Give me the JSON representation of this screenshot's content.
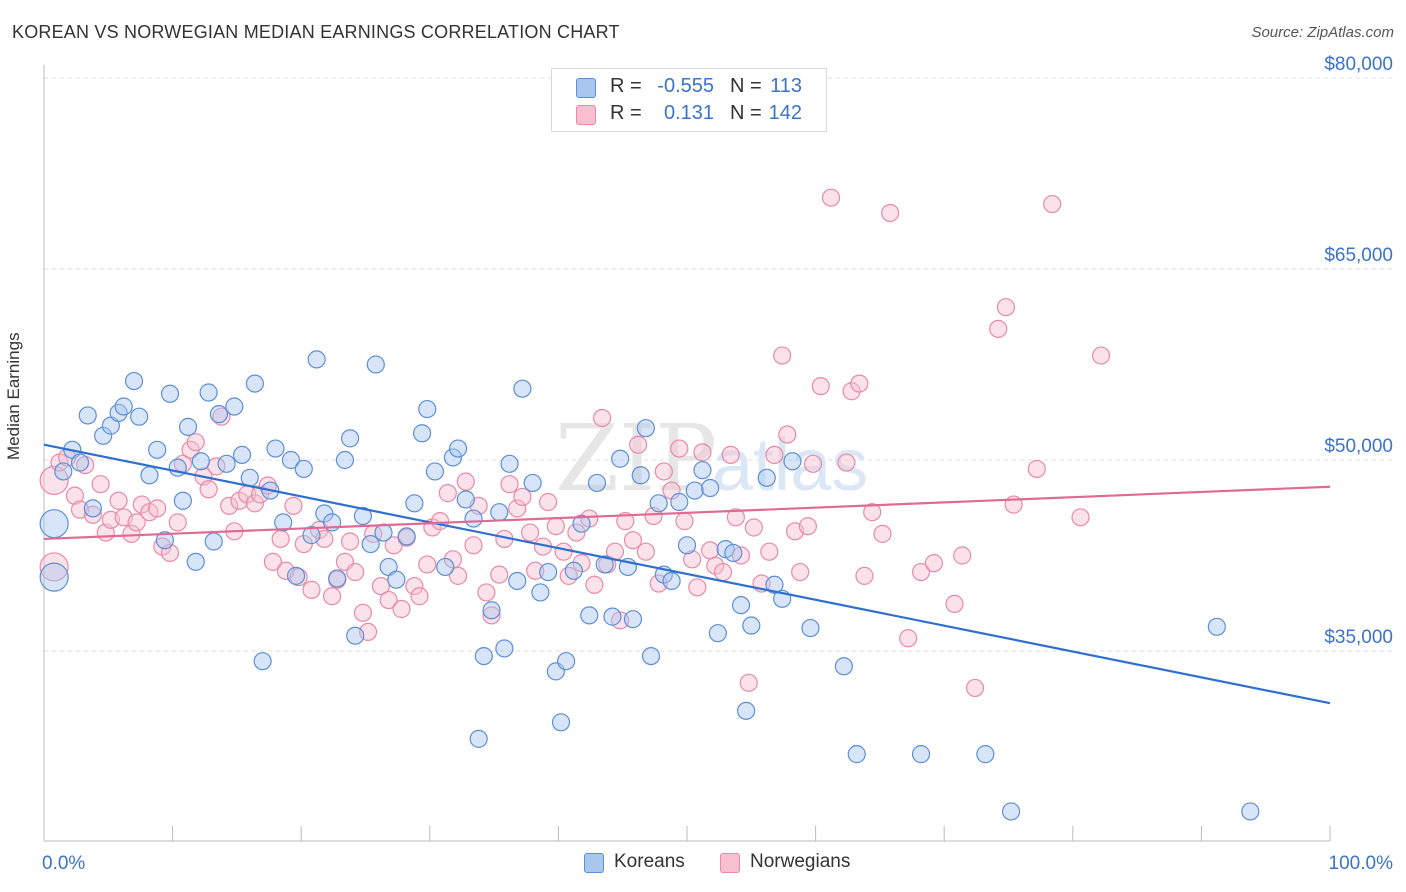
{
  "header": {
    "title": "KOREAN VS NORWEGIAN MEDIAN EARNINGS CORRELATION CHART",
    "source": "Source: ZipAtlas.com"
  },
  "legend_top": {
    "rows": [
      {
        "r_label": "R =",
        "r_value": "-0.555",
        "n_label": "N =",
        "n_value": "113"
      },
      {
        "r_label": "R =",
        "r_value": "0.131",
        "n_label": "N =",
        "n_value": "142"
      }
    ]
  },
  "legend_bottom": {
    "items": [
      {
        "label": "Koreans"
      },
      {
        "label": "Norwegians"
      }
    ]
  },
  "watermark": {
    "text1": "ZIP",
    "text2": "atlas"
  },
  "colors": {
    "koreans_fill": "#a9c6ef",
    "koreans_stroke": "#5d8fd6",
    "koreans_line": "#2f6fd0",
    "norwegians_fill": "#f7bfd0",
    "norwegians_stroke": "#e88aa8",
    "norwegians_line": "#e06a94",
    "axis_label": "#3b73c9",
    "grid": "#dddddd"
  },
  "chart_data": {
    "type": "scatter",
    "title": "KOREAN VS NORWEGIAN MEDIAN EARNINGS CORRELATION CHART",
    "xlabel": "",
    "ylabel": "Median Earnings",
    "xlim": [
      0,
      100
    ],
    "ylim": [
      20000,
      83000
    ],
    "x_tick_labels": [
      "0.0%",
      "100.0%"
    ],
    "y_ticks": [
      35000,
      50000,
      65000,
      80000
    ],
    "y_tick_labels": [
      "$35,000",
      "$50,000",
      "$65,000",
      "$80,000"
    ],
    "grid": true,
    "legend_position": "top-center",
    "series": [
      {
        "name": "Koreans",
        "r": -0.555,
        "n": 113,
        "trend": {
          "x": [
            0,
            100
          ],
          "y": [
            51200,
            30900
          ]
        },
        "points": [
          [
            0.4,
            45000
          ],
          [
            0.4,
            40800
          ],
          [
            1.5,
            49100
          ],
          [
            2.2,
            50800
          ],
          [
            2.8,
            49800
          ],
          [
            3.4,
            53500
          ],
          [
            3.8,
            46200
          ],
          [
            4.6,
            51900
          ],
          [
            5.2,
            52700
          ],
          [
            5.8,
            53700
          ],
          [
            6.2,
            54200
          ],
          [
            7.0,
            56200
          ],
          [
            7.4,
            53400
          ],
          [
            8.2,
            48800
          ],
          [
            8.8,
            50800
          ],
          [
            9.4,
            43700
          ],
          [
            9.8,
            55200
          ],
          [
            10.4,
            49400
          ],
          [
            10.8,
            46800
          ],
          [
            11.2,
            52600
          ],
          [
            11.8,
            42000
          ],
          [
            12.2,
            49900
          ],
          [
            12.8,
            55300
          ],
          [
            13.2,
            43600
          ],
          [
            13.6,
            53600
          ],
          [
            14.2,
            49700
          ],
          [
            14.8,
            54200
          ],
          [
            15.4,
            50400
          ],
          [
            16.0,
            48600
          ],
          [
            16.4,
            56000
          ],
          [
            17.0,
            34200
          ],
          [
            17.6,
            47600
          ],
          [
            18.0,
            50900
          ],
          [
            18.6,
            45100
          ],
          [
            19.2,
            50000
          ],
          [
            19.6,
            40900
          ],
          [
            20.2,
            49300
          ],
          [
            20.8,
            44100
          ],
          [
            21.2,
            57900
          ],
          [
            21.8,
            45800
          ],
          [
            22.4,
            45100
          ],
          [
            22.8,
            40700
          ],
          [
            23.4,
            50000
          ],
          [
            23.8,
            51700
          ],
          [
            24.2,
            36200
          ],
          [
            24.8,
            45600
          ],
          [
            25.4,
            43400
          ],
          [
            25.8,
            57500
          ],
          [
            26.4,
            44300
          ],
          [
            26.8,
            41600
          ],
          [
            27.4,
            40600
          ],
          [
            28.2,
            44000
          ],
          [
            28.8,
            46600
          ],
          [
            29.4,
            52100
          ],
          [
            29.8,
            54000
          ],
          [
            30.4,
            49100
          ],
          [
            31.2,
            41600
          ],
          [
            31.8,
            50200
          ],
          [
            32.2,
            50900
          ],
          [
            32.8,
            46900
          ],
          [
            33.4,
            45400
          ],
          [
            33.8,
            28100
          ],
          [
            34.2,
            34600
          ],
          [
            34.8,
            38200
          ],
          [
            35.4,
            45900
          ],
          [
            35.8,
            35200
          ],
          [
            36.2,
            49700
          ],
          [
            36.8,
            40500
          ],
          [
            37.2,
            55600
          ],
          [
            38.0,
            48200
          ],
          [
            38.6,
            39600
          ],
          [
            39.2,
            41200
          ],
          [
            39.8,
            33400
          ],
          [
            40.2,
            29400
          ],
          [
            40.6,
            34200
          ],
          [
            41.2,
            41300
          ],
          [
            41.8,
            45000
          ],
          [
            42.4,
            37800
          ],
          [
            43.0,
            48200
          ],
          [
            43.6,
            41800
          ],
          [
            44.2,
            37700
          ],
          [
            44.8,
            50100
          ],
          [
            45.4,
            41600
          ],
          [
            45.8,
            37500
          ],
          [
            46.4,
            48800
          ],
          [
            46.8,
            52500
          ],
          [
            47.2,
            34600
          ],
          [
            47.8,
            46600
          ],
          [
            48.2,
            41000
          ],
          [
            48.8,
            40500
          ],
          [
            49.4,
            46700
          ],
          [
            50.0,
            43300
          ],
          [
            50.6,
            47600
          ],
          [
            51.2,
            49200
          ],
          [
            51.8,
            47800
          ],
          [
            52.4,
            36400
          ],
          [
            53.0,
            43000
          ],
          [
            53.6,
            42700
          ],
          [
            54.2,
            38600
          ],
          [
            54.6,
            30300
          ],
          [
            55.0,
            37000
          ],
          [
            56.2,
            48600
          ],
          [
            56.8,
            40200
          ],
          [
            57.4,
            39100
          ],
          [
            58.2,
            49900
          ],
          [
            59.6,
            36800
          ],
          [
            62.2,
            33800
          ],
          [
            63.2,
            26900
          ],
          [
            68.2,
            26900
          ],
          [
            73.2,
            26900
          ],
          [
            75.2,
            22400
          ],
          [
            91.2,
            36900
          ],
          [
            93.8,
            22400
          ]
        ]
      },
      {
        "name": "Norwegians",
        "r": 0.131,
        "n": 142,
        "trend": {
          "x": [
            0,
            100
          ],
          "y": [
            43800,
            47900
          ]
        },
        "points": [
          [
            0.4,
            41600
          ],
          [
            0.4,
            48400
          ],
          [
            1.2,
            49800
          ],
          [
            1.8,
            50200
          ],
          [
            2.4,
            47200
          ],
          [
            2.8,
            46100
          ],
          [
            3.2,
            49600
          ],
          [
            3.8,
            45700
          ],
          [
            4.4,
            48100
          ],
          [
            4.8,
            44300
          ],
          [
            5.2,
            45300
          ],
          [
            5.8,
            46800
          ],
          [
            6.2,
            45500
          ],
          [
            6.8,
            44200
          ],
          [
            7.2,
            45100
          ],
          [
            7.6,
            46500
          ],
          [
            8.2,
            45900
          ],
          [
            8.8,
            46200
          ],
          [
            9.2,
            43200
          ],
          [
            9.8,
            42700
          ],
          [
            10.4,
            45100
          ],
          [
            10.8,
            49700
          ],
          [
            11.4,
            50800
          ],
          [
            11.8,
            51400
          ],
          [
            12.4,
            48700
          ],
          [
            12.8,
            47700
          ],
          [
            13.4,
            49500
          ],
          [
            13.8,
            53400
          ],
          [
            14.4,
            46400
          ],
          [
            14.8,
            44400
          ],
          [
            15.2,
            46800
          ],
          [
            15.8,
            47300
          ],
          [
            16.4,
            46600
          ],
          [
            16.8,
            47300
          ],
          [
            17.4,
            48000
          ],
          [
            17.8,
            42000
          ],
          [
            18.4,
            43800
          ],
          [
            18.8,
            41300
          ],
          [
            19.4,
            46400
          ],
          [
            19.8,
            40800
          ],
          [
            20.2,
            43400
          ],
          [
            20.8,
            39800
          ],
          [
            21.4,
            44500
          ],
          [
            21.8,
            43800
          ],
          [
            22.4,
            39300
          ],
          [
            22.8,
            40600
          ],
          [
            23.4,
            42000
          ],
          [
            23.8,
            43600
          ],
          [
            24.2,
            41200
          ],
          [
            24.8,
            38000
          ],
          [
            25.2,
            36500
          ],
          [
            25.6,
            44200
          ],
          [
            26.2,
            40100
          ],
          [
            26.8,
            39000
          ],
          [
            27.2,
            43300
          ],
          [
            27.8,
            38300
          ],
          [
            28.2,
            43900
          ],
          [
            28.8,
            40100
          ],
          [
            29.2,
            39300
          ],
          [
            29.8,
            41800
          ],
          [
            30.2,
            44700
          ],
          [
            30.8,
            45200
          ],
          [
            31.4,
            47400
          ],
          [
            31.8,
            42200
          ],
          [
            32.2,
            40900
          ],
          [
            32.8,
            48300
          ],
          [
            33.4,
            43300
          ],
          [
            33.8,
            46400
          ],
          [
            34.4,
            39600
          ],
          [
            34.8,
            37800
          ],
          [
            35.4,
            41000
          ],
          [
            35.8,
            43800
          ],
          [
            36.2,
            48100
          ],
          [
            36.8,
            46200
          ],
          [
            37.2,
            47100
          ],
          [
            37.8,
            44300
          ],
          [
            38.2,
            41300
          ],
          [
            38.8,
            43200
          ],
          [
            39.2,
            46700
          ],
          [
            39.8,
            44800
          ],
          [
            40.4,
            42800
          ],
          [
            40.8,
            40900
          ],
          [
            41.4,
            44300
          ],
          [
            41.8,
            41900
          ],
          [
            42.4,
            45400
          ],
          [
            42.8,
            40200
          ],
          [
            43.4,
            53300
          ],
          [
            43.8,
            41800
          ],
          [
            44.4,
            42800
          ],
          [
            44.8,
            37400
          ],
          [
            45.2,
            45200
          ],
          [
            45.8,
            43700
          ],
          [
            46.2,
            51200
          ],
          [
            46.8,
            42800
          ],
          [
            47.4,
            45600
          ],
          [
            47.8,
            40300
          ],
          [
            48.2,
            49100
          ],
          [
            48.8,
            47600
          ],
          [
            49.4,
            50900
          ],
          [
            49.8,
            45200
          ],
          [
            50.4,
            42200
          ],
          [
            50.8,
            40000
          ],
          [
            51.2,
            50600
          ],
          [
            51.8,
            42900
          ],
          [
            52.2,
            41700
          ],
          [
            52.8,
            41200
          ],
          [
            53.4,
            50400
          ],
          [
            53.8,
            45500
          ],
          [
            54.2,
            42500
          ],
          [
            54.8,
            32500
          ],
          [
            55.2,
            44700
          ],
          [
            55.8,
            40300
          ],
          [
            56.4,
            42800
          ],
          [
            56.8,
            50400
          ],
          [
            57.4,
            58200
          ],
          [
            57.8,
            52000
          ],
          [
            58.4,
            44400
          ],
          [
            58.8,
            41200
          ],
          [
            59.4,
            44800
          ],
          [
            59.8,
            49700
          ],
          [
            60.4,
            55800
          ],
          [
            61.2,
            70600
          ],
          [
            62.4,
            49800
          ],
          [
            62.8,
            55400
          ],
          [
            63.4,
            56000
          ],
          [
            63.8,
            40900
          ],
          [
            64.4,
            45900
          ],
          [
            65.2,
            44200
          ],
          [
            65.8,
            69400
          ],
          [
            67.2,
            36000
          ],
          [
            68.2,
            41200
          ],
          [
            69.2,
            41900
          ],
          [
            70.8,
            38700
          ],
          [
            71.4,
            42500
          ],
          [
            72.4,
            32100
          ],
          [
            74.2,
            60300
          ],
          [
            74.8,
            62000
          ],
          [
            75.4,
            46500
          ],
          [
            77.2,
            49300
          ],
          [
            78.4,
            70100
          ],
          [
            80.6,
            45500
          ],
          [
            82.2,
            58200
          ]
        ]
      }
    ]
  }
}
